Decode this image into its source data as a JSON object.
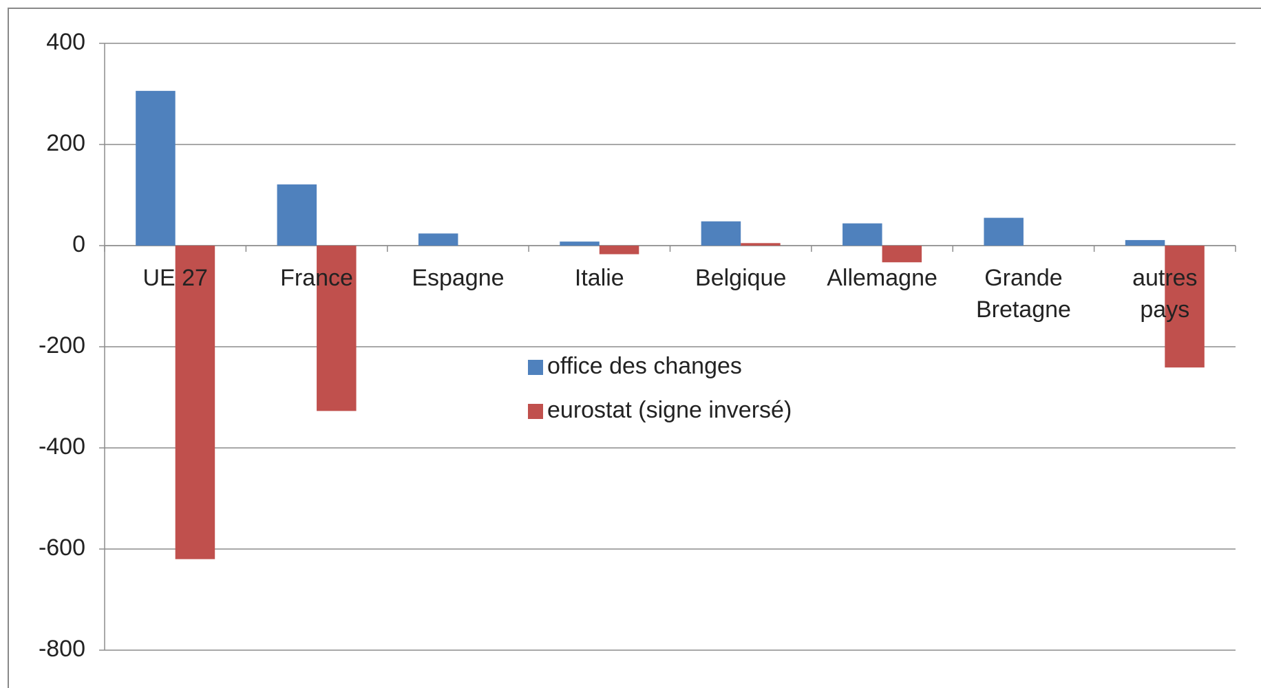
{
  "chart_data": {
    "type": "bar",
    "categories": [
      "UE 27",
      "France",
      "Espagne",
      "Italie",
      "Belgique",
      "Allemagne",
      "Grande Bretagne",
      "autres pays"
    ],
    "series": [
      {
        "name": "office des changes",
        "color": "#4f81bd",
        "values": [
          306,
          121,
          24,
          8,
          48,
          44,
          55,
          11
        ]
      },
      {
        "name": "eurostat (signe inversé)",
        "color": "#c0504d",
        "values": [
          -620,
          -327,
          0,
          -17,
          5,
          -33,
          0,
          -241
        ]
      }
    ],
    "ylim": [
      -800,
      400
    ],
    "yticks": [
      -800,
      -600,
      -400,
      -200,
      0,
      200,
      400
    ],
    "grid": true
  }
}
